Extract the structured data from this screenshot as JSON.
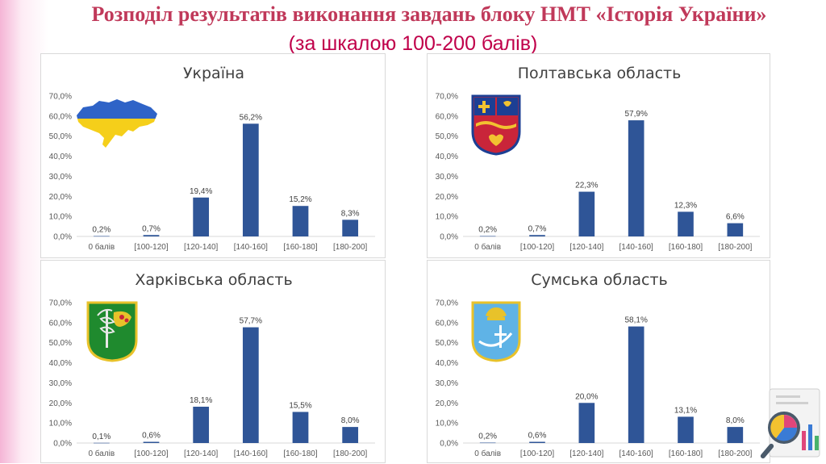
{
  "header": {
    "title": "Розподіл результатів виконання завдань блоку НМТ «Історія України»",
    "subtitle": "(за шкалою 100-200 балів)"
  },
  "colors": {
    "bar": "#2f5597",
    "title": "#c0395a",
    "subtitle": "#c0004a"
  },
  "chart_data": [
    {
      "type": "bar",
      "title": "Україна",
      "emblem": "ukraine-map-flag-icon",
      "categories": [
        "0 балів",
        "[100-120]",
        "[120-140]",
        "[140-160]",
        "[160-180]",
        "[180-200]"
      ],
      "values": [
        0.2,
        0.7,
        19.4,
        56.2,
        15.2,
        8.3
      ],
      "data_labels": [
        "0,2%",
        "0,7%",
        "19,4%",
        "56,2%",
        "15,2%",
        "8,3%"
      ],
      "yticks": [
        "0,0%",
        "10,0%",
        "20,0%",
        "30,0%",
        "40,0%",
        "50,0%",
        "60,0%",
        "70,0%"
      ],
      "ylim": [
        0,
        70
      ],
      "grid": false
    },
    {
      "type": "bar",
      "title": "Полтавська область",
      "emblem": "poltava-coat-of-arms-icon",
      "categories": [
        "0 балів",
        "[100-120]",
        "[120-140]",
        "[140-160]",
        "[160-180]",
        "[180-200]"
      ],
      "values": [
        0.2,
        0.7,
        22.3,
        57.9,
        12.3,
        6.6
      ],
      "data_labels": [
        "0,2%",
        "0,7%",
        "22,3%",
        "57,9%",
        "12,3%",
        "6,6%"
      ],
      "yticks": [
        "0,0%",
        "10,0%",
        "20,0%",
        "30,0%",
        "40,0%",
        "50,0%",
        "60,0%",
        "70,0%"
      ],
      "ylim": [
        0,
        70
      ],
      "grid": false
    },
    {
      "type": "bar",
      "title": "Харківська область",
      "emblem": "kharkiv-coat-of-arms-icon",
      "categories": [
        "0 балів",
        "[100-120]",
        "[120-140]",
        "[140-160]",
        "[160-180]",
        "[180-200]"
      ],
      "values": [
        0.1,
        0.6,
        18.1,
        57.7,
        15.5,
        8.0
      ],
      "data_labels": [
        "0,1%",
        "0,6%",
        "18,1%",
        "57,7%",
        "15,5%",
        "8,0%"
      ],
      "yticks": [
        "0,0%",
        "10,0%",
        "20,0%",
        "30,0%",
        "40,0%",
        "50,0%",
        "60,0%",
        "70,0%"
      ],
      "ylim": [
        0,
        70
      ],
      "grid": false
    },
    {
      "type": "bar",
      "title": "Сумська область",
      "emblem": "sumy-coat-of-arms-icon",
      "categories": [
        "0 балів",
        "[100-120]",
        "[120-140]",
        "[140-160]",
        "[160-180]",
        "[180-200]"
      ],
      "values": [
        0.2,
        0.6,
        20.0,
        58.1,
        13.1,
        8.0
      ],
      "data_labels": [
        "0,2%",
        "0,6%",
        "20,0%",
        "58,1%",
        "13,1%",
        "8,0%"
      ],
      "yticks": [
        "0,0%",
        "10,0%",
        "20,0%",
        "30,0%",
        "40,0%",
        "50,0%",
        "60,0%",
        "70,0%"
      ],
      "ylim": [
        0,
        70
      ],
      "grid": false
    }
  ],
  "decorations": {
    "corner_icon": "magnifier-chart-icon"
  }
}
